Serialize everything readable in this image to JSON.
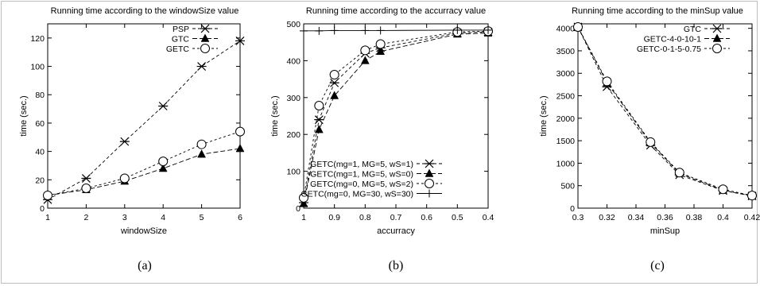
{
  "chart_data": [
    {
      "type": "line",
      "title": "Running time according to the windowSize value",
      "xlabel": "windowSize",
      "ylabel": "time (sec.)",
      "sublabel": "(a)",
      "xlim": [
        1,
        6
      ],
      "ylim": [
        0,
        130
      ],
      "xticks": [
        "1",
        "2",
        "3",
        "4",
        "5",
        "6"
      ],
      "yticks": [
        "0",
        "20",
        "40",
        "60",
        "80",
        "100",
        "120"
      ],
      "legend_position": "top-right",
      "series": [
        {
          "name": "PSP",
          "marker": "star",
          "x": [
            1,
            2,
            3,
            4,
            5,
            6
          ],
          "y": [
            6,
            21,
            47,
            72,
            100,
            118
          ]
        },
        {
          "name": "GTC",
          "marker": "triangle",
          "x": [
            1,
            2,
            3,
            4,
            5,
            6
          ],
          "y": [
            9,
            13,
            19,
            28,
            38,
            42
          ]
        },
        {
          "name": "GETC",
          "marker": "circle",
          "x": [
            1,
            2,
            3,
            4,
            5,
            6
          ],
          "y": [
            9,
            14,
            21,
            33,
            45,
            54
          ]
        }
      ]
    },
    {
      "type": "line",
      "title": "Running time according to the accurracy value",
      "xlabel": "accurracy",
      "ylabel": "time (sec.)",
      "sublabel": "(b)",
      "xlim": [
        1,
        0.4
      ],
      "ylim": [
        0,
        500
      ],
      "xticks": [
        "1",
        "0.9",
        "0.8",
        "0.7",
        "0.6",
        "0.5",
        "0.4"
      ],
      "yticks": [
        "0",
        "100",
        "200",
        "300",
        "400",
        "500"
      ],
      "legend_position": "bottom-left",
      "series": [
        {
          "name": "GETC(mg=1, MG=5, wS=1)",
          "marker": "star",
          "x": [
            1,
            0.95,
            0.9,
            0.8,
            0.75,
            0.5,
            0.4
          ],
          "y": [
            15,
            240,
            340,
            420,
            435,
            475,
            478
          ]
        },
        {
          "name": "GETC(mg=1, MG=5, wS=0)",
          "marker": "triangle",
          "x": [
            1,
            0.95,
            0.9,
            0.8,
            0.75,
            0.5,
            0.4
          ],
          "y": [
            12,
            213,
            305,
            400,
            425,
            472,
            475
          ]
        },
        {
          "name": "GETC(mg=0, MG=5, wS=2)",
          "marker": "circle",
          "x": [
            1,
            0.95,
            0.9,
            0.8,
            0.75,
            0.5,
            0.4
          ],
          "y": [
            28,
            278,
            362,
            428,
            445,
            478,
            480
          ]
        },
        {
          "name": "GETC(mg=0, MG=30, wS=30)",
          "marker": "plus",
          "x": [
            1,
            0.95,
            0.9,
            0.8,
            0.75,
            0.5,
            0.4
          ],
          "y": [
            481,
            481,
            482,
            482,
            482,
            483,
            483
          ]
        }
      ]
    },
    {
      "type": "line",
      "title": "Running time according to the minSup value",
      "xlabel": "minSup",
      "ylabel": "time (sec.)",
      "sublabel": "(c)",
      "xlim": [
        0.3,
        0.42
      ],
      "ylim": [
        0,
        4100
      ],
      "xticks": [
        "0.3",
        "0.32",
        "0.34",
        "0.36",
        "0.38",
        "0.4",
        "0.42"
      ],
      "yticks": [
        "0",
        "500",
        "1000",
        "1500",
        "2000",
        "2500",
        "3000",
        "3500",
        "4000"
      ],
      "legend_position": "top-right",
      "series": [
        {
          "name": "GTC",
          "marker": "star",
          "x": [
            0.3,
            0.32,
            0.35,
            0.37,
            0.4,
            0.42
          ],
          "y": [
            4030,
            2700,
            1400,
            740,
            390,
            270
          ]
        },
        {
          "name": "GETC-4-0-10-1",
          "marker": "triangle",
          "x": [
            0.3,
            0.32,
            0.35,
            0.37,
            0.4,
            0.42
          ],
          "y": [
            4030,
            2790,
            1450,
            770,
            400,
            270
          ]
        },
        {
          "name": "GETC-0-1-5-0.75",
          "marker": "circle",
          "x": [
            0.3,
            0.32,
            0.35,
            0.37,
            0.4,
            0.42
          ],
          "y": [
            4030,
            2820,
            1470,
            790,
            420,
            280
          ]
        }
      ]
    }
  ]
}
